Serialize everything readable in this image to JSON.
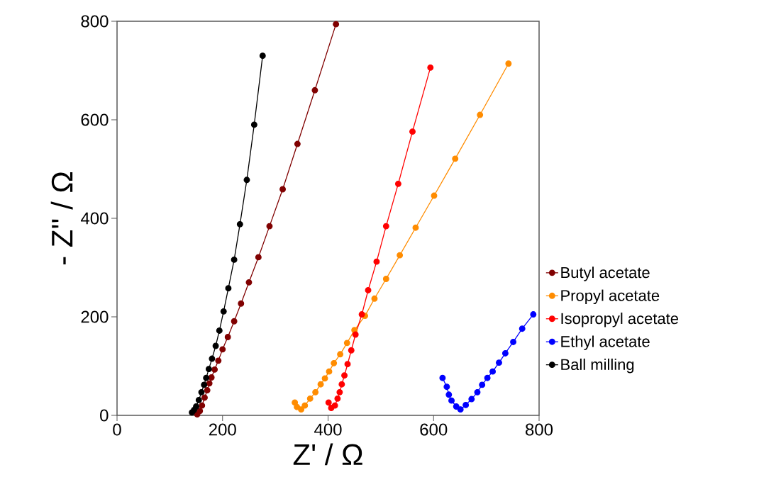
{
  "chart_data": {
    "type": "line",
    "xlabel": "Z' / Ω",
    "ylabel": "- Z'' / Ω",
    "xlim": [
      0,
      800
    ],
    "ylim": [
      0,
      800
    ],
    "xticks": [
      0,
      200,
      400,
      600,
      800
    ],
    "yticks": [
      0,
      200,
      400,
      600,
      800
    ],
    "grid": false,
    "legend": "right",
    "marker": "circle",
    "line_style": "solid",
    "series": [
      {
        "name": "Butyl acetate",
        "color": "#800000",
        "x": [
          152,
          157,
          161,
          166,
          171,
          175,
          179,
          185,
          192,
          200,
          210,
          222,
          235,
          250,
          268,
          289,
          314,
          342,
          375,
          415
        ],
        "values": [
          2,
          9,
          20,
          36,
          51,
          65,
          77,
          93,
          111,
          134,
          159,
          191,
          227,
          270,
          321,
          384,
          459,
          551,
          660,
          794
        ]
      },
      {
        "name": "Propyl acetate",
        "color": "#ff8c00",
        "x": [
          337,
          341,
          349,
          356,
          366,
          376,
          386,
          394,
          402,
          411,
          423,
          436,
          450,
          470,
          488,
          510,
          536,
          566,
          601,
          641,
          688,
          742
        ],
        "values": [
          26,
          17,
          12,
          20,
          34,
          47,
          63,
          75,
          89,
          106,
          124,
          147,
          173,
          202,
          237,
          277,
          325,
          381,
          446,
          521,
          610,
          714
        ]
      },
      {
        "name": "Isopropyl acetate",
        "color": "#ff0000",
        "x": [
          401,
          403,
          406,
          413,
          418,
          422,
          426,
          431,
          437,
          444,
          452,
          464,
          476,
          492,
          510,
          533,
          560,
          594
        ],
        "values": [
          26,
          null,
          15,
          20,
          34,
          47,
          63,
          81,
          104,
          132,
          164,
          205,
          254,
          312,
          384,
          470,
          576,
          706
        ]
      },
      {
        "name": "Ethyl acetate",
        "color": "#0000ff",
        "x": [
          617,
          625,
          629,
          634,
          643,
          651,
          661,
          672,
          683,
          692,
          702,
          712,
          724,
          736,
          751,
          768,
          789
        ],
        "values": [
          76,
          58,
          42,
          30,
          18,
          12,
          21,
          33,
          47,
          62,
          76,
          89,
          107,
          126,
          149,
          176,
          205
        ]
      },
      {
        "name": "Ball milling",
        "color": "#000000",
        "x": [
          142,
          146,
          150,
          155,
          160,
          165,
          169,
          174,
          180,
          187,
          194,
          202,
          211,
          222,
          233,
          246,
          260,
          276
        ],
        "values": [
          6,
          11,
          18,
          31,
          47,
          62,
          76,
          94,
          115,
          141,
          172,
          211,
          258,
          316,
          388,
          478,
          590,
          730
        ]
      }
    ]
  }
}
